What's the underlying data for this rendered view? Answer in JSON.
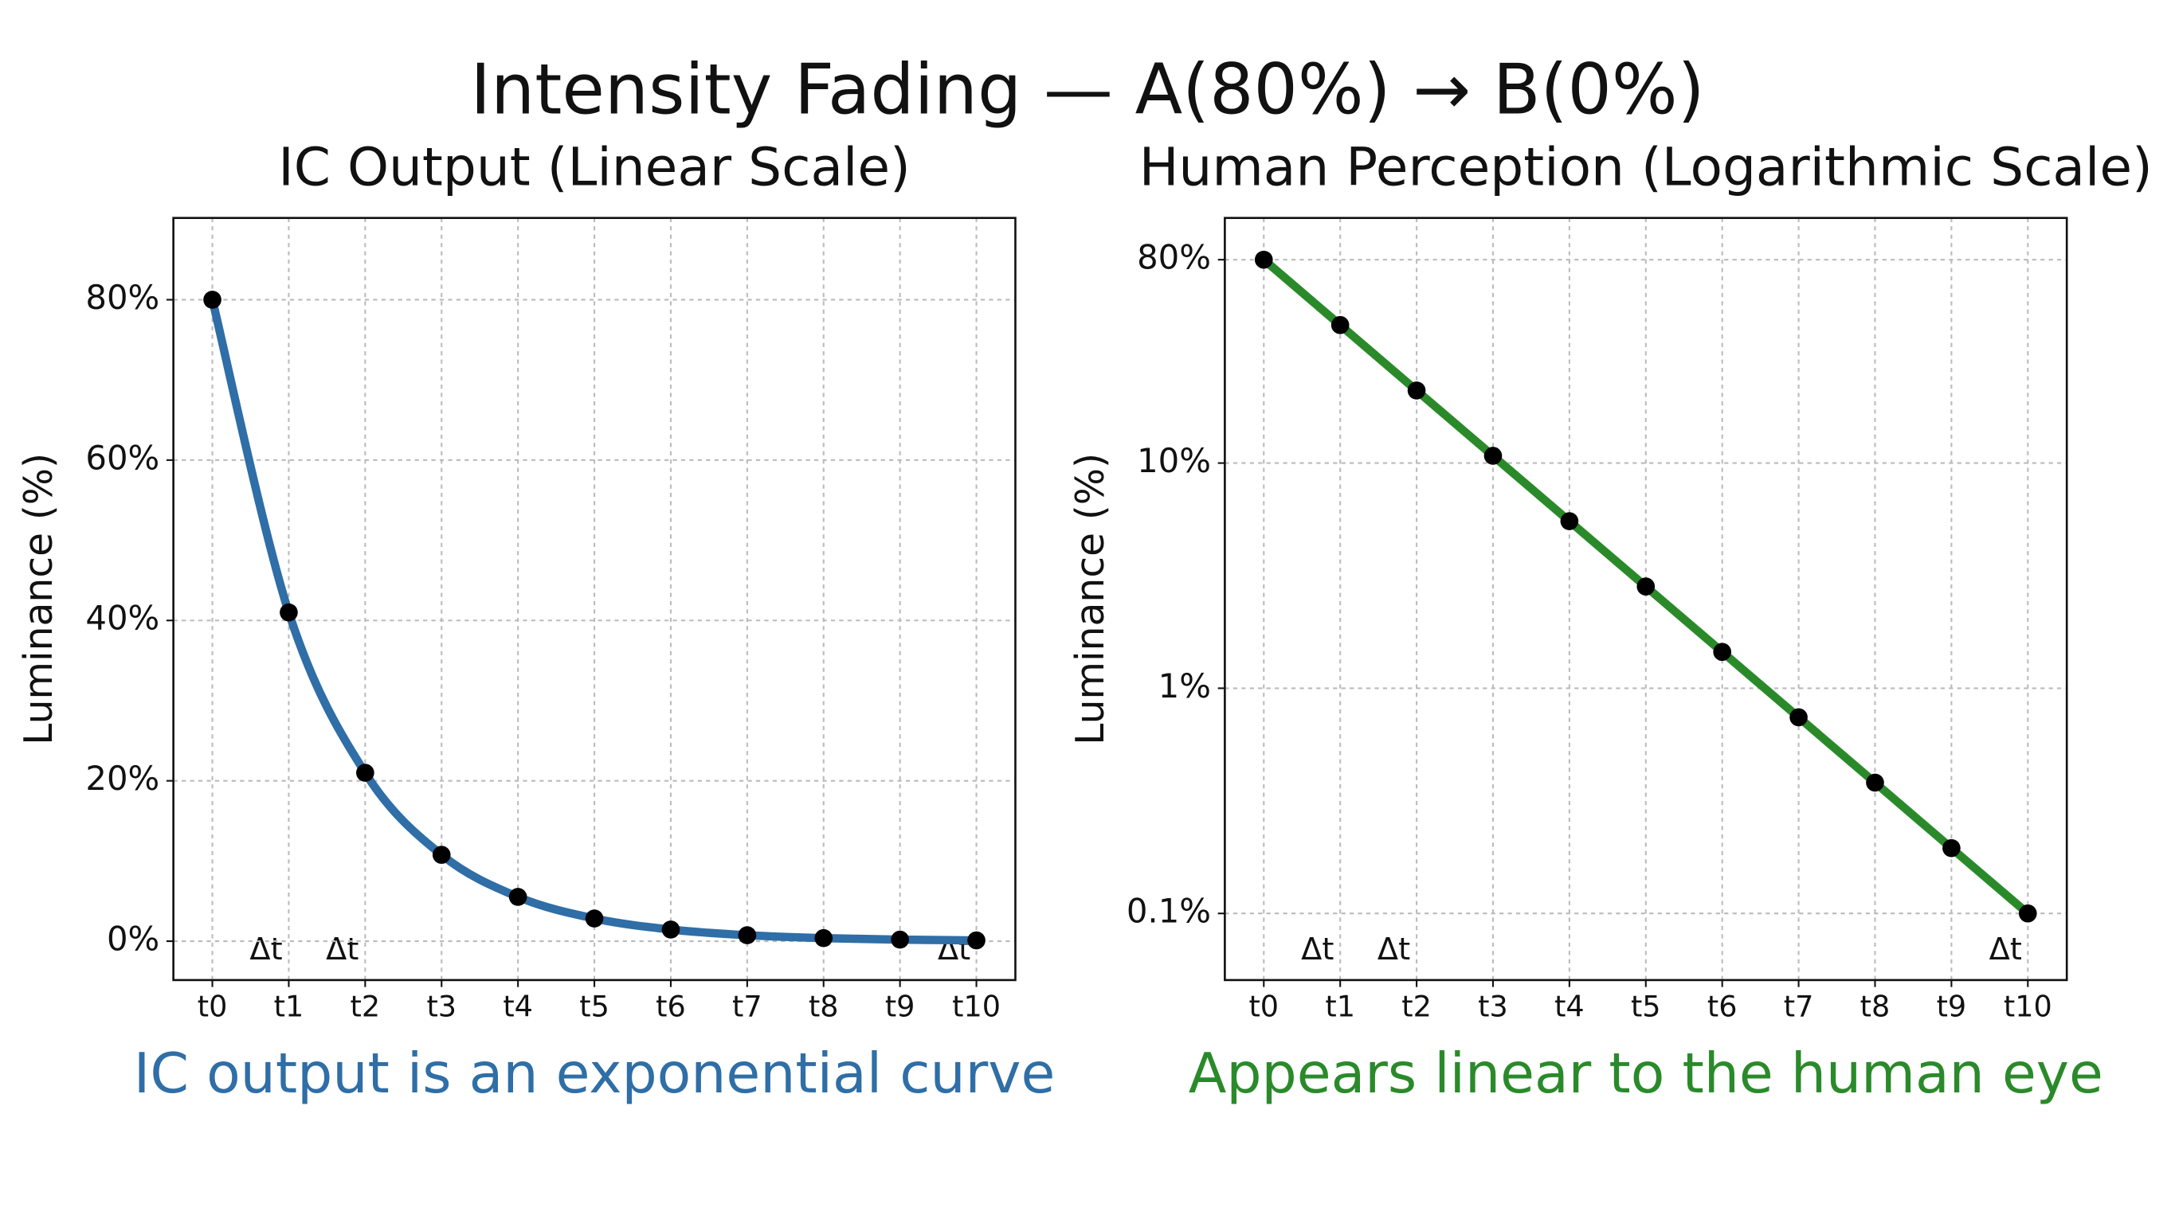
{
  "title": "Intensity Fading — A(80%) → B(0%)",
  "chart_data": [
    {
      "type": "line",
      "title": "IC Output (Linear Scale)",
      "ylabel": "Luminance (%)",
      "categories": [
        "t0",
        "t1",
        "t2",
        "t3",
        "t4",
        "t5",
        "t6",
        "t7",
        "t8",
        "t9",
        "t10"
      ],
      "values": [
        80,
        41.0,
        21.0,
        10.77,
        5.52,
        2.83,
        1.45,
        0.743,
        0.381,
        0.195,
        0.1
      ],
      "color": "#2f6ea6",
      "marker_color": "#000000",
      "log_scale": false,
      "ylim": [
        -4.85,
        90.2
      ],
      "yticks": [
        {
          "value": 0,
          "label": "0%"
        },
        {
          "value": 20,
          "label": "20%"
        },
        {
          "value": 40,
          "label": "40%"
        },
        {
          "value": 60,
          "label": "60%"
        },
        {
          "value": 80,
          "label": "80%"
        }
      ],
      "grid": true,
      "annotations": [
        "Δt",
        "Δt",
        "Δt"
      ],
      "caption": "IC output is an exponential curve"
    },
    {
      "type": "line",
      "title": "Human Perception (Logarithmic Scale)",
      "ylabel": "Luminance (%)",
      "categories": [
        "t0",
        "t1",
        "t2",
        "t3",
        "t4",
        "t5",
        "t6",
        "t7",
        "t8",
        "t9",
        "t10"
      ],
      "values": [
        80,
        41.0,
        21.0,
        10.77,
        5.52,
        2.83,
        1.45,
        0.743,
        0.381,
        0.195,
        0.1
      ],
      "color": "#2a8a2a",
      "marker_color": "#000000",
      "log_scale": true,
      "ylim": [
        0.0506,
        122.6
      ],
      "yticks": [
        {
          "value": 0.1,
          "label": "0.1%"
        },
        {
          "value": 1,
          "label": "1%"
        },
        {
          "value": 10,
          "label": "10%"
        },
        {
          "value": 80,
          "label": "80%"
        }
      ],
      "grid": true,
      "annotations": [
        "Δt",
        "Δt",
        "Δt"
      ],
      "caption": "Appears linear to the human eye"
    }
  ]
}
